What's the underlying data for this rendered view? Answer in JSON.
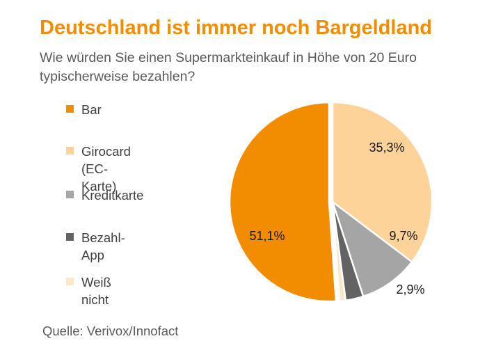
{
  "title": "Deutschland ist immer noch Bargeldland",
  "subtitle": "Wie würden Sie einen Supermarkteinkauf in Höhe von 20 Euro typischerweise bezahlen?",
  "source": "Quelle: Verivox/Innofact",
  "chart_data": {
    "type": "pie",
    "title": "Deutschland ist immer noch Bargeldland",
    "subtitle": "Wie würden Sie einen Supermarkteinkauf in Höhe von 20 Euro typischerweise bezahlen?",
    "legend_position": "left",
    "start": "12 o'clock, clockwise",
    "slices": [
      {
        "label": "Girocard (EC-Karte)",
        "legend_lines": [
          "Girocard",
          "(EC-Karte)"
        ],
        "value": 35.3,
        "value_label": "35,3%",
        "color": "#fdd39a"
      },
      {
        "label": "Kreditkarte",
        "legend_lines": [
          "Kreditkarte"
        ],
        "value": 9.7,
        "value_label": "9,7%",
        "color": "#a5a5a5"
      },
      {
        "label": "Bezahl-App",
        "legend_lines": [
          "Bezahl-App"
        ],
        "value": 2.9,
        "value_label": "2,9%",
        "color": "#636363"
      },
      {
        "label": "Weiß nicht",
        "legend_lines": [
          "Weiß nicht"
        ],
        "value": 1.0,
        "value_label": "",
        "color": "#fde7c9"
      },
      {
        "label": "Bar",
        "legend_lines": [
          "Bar"
        ],
        "value": 51.1,
        "value_label": "51,1%",
        "color": "#f28c00"
      }
    ],
    "legend_order": [
      "Bar",
      "Girocard (EC-Karte)",
      "Kreditkarte",
      "Bezahl-App",
      "Weiß nicht"
    ]
  }
}
